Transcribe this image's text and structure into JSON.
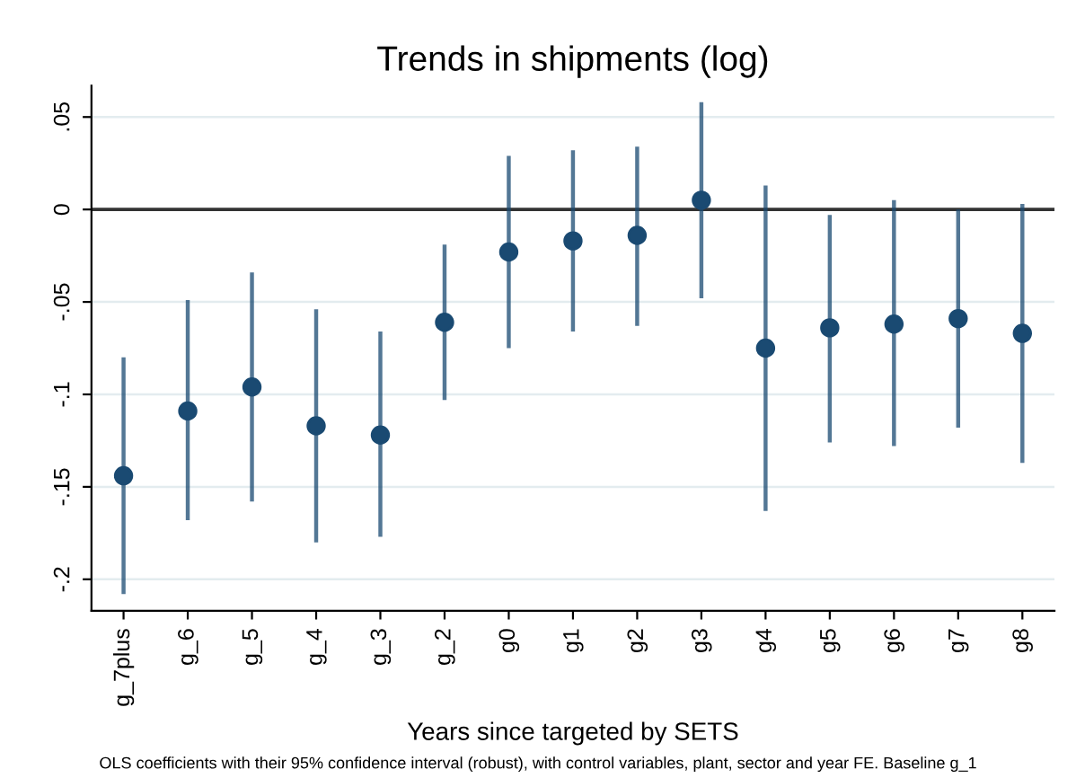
{
  "chart_data": {
    "type": "scatter",
    "title": "Trends in shipments (log)",
    "xlabel": "Years since targeted by SETS",
    "categories": [
      "g_7plus",
      "g_6",
      "g_5",
      "g_4",
      "g_3",
      "g_2",
      "g0",
      "g1",
      "g2",
      "g3",
      "g4",
      "g5",
      "g6",
      "g7",
      "g8"
    ],
    "series": [
      {
        "color": "#1a4a72",
        "values": [
          -0.144,
          -0.109,
          -0.096,
          -0.117,
          -0.122,
          -0.061,
          -0.023,
          -0.017,
          -0.014,
          0.005,
          -0.075,
          -0.064,
          -0.062,
          -0.059,
          -0.067
        ],
        "errors": [
          [
            -0.208,
            -0.08
          ],
          [
            -0.168,
            -0.049
          ],
          [
            -0.158,
            -0.034
          ],
          [
            -0.18,
            -0.054
          ],
          [
            -0.177,
            -0.066
          ],
          [
            -0.103,
            -0.019
          ],
          [
            -0.075,
            0.029
          ],
          [
            -0.066,
            0.032
          ],
          [
            -0.063,
            0.034
          ],
          [
            -0.048,
            0.058
          ],
          [
            -0.163,
            0.013
          ],
          [
            -0.126,
            -0.003
          ],
          [
            -0.128,
            0.005
          ],
          [
            -0.118,
            0.0
          ],
          [
            -0.137,
            0.003
          ]
        ]
      }
    ],
    "ylim": [
      -0.217,
      0.067
    ],
    "yticks": [
      {
        "value": 0.05,
        "label": ".05"
      },
      0,
      {
        "value": -0.05,
        "label": "-.05"
      },
      {
        "value": -0.1,
        "label": "-.1"
      },
      {
        "value": -0.15,
        "label": "-.15"
      },
      {
        "value": -0.2,
        "label": "-.2"
      }
    ],
    "grid": "y",
    "marker": "circle",
    "legend": false,
    "ref_lines": [
      {
        "axis": "y",
        "value": 0,
        "color": "#333333"
      }
    ],
    "annotations": [
      "OLS coefficients with their 95% confidence interval (robust), with control variables, plant, sector and year FE. Baseline g_1"
    ]
  }
}
